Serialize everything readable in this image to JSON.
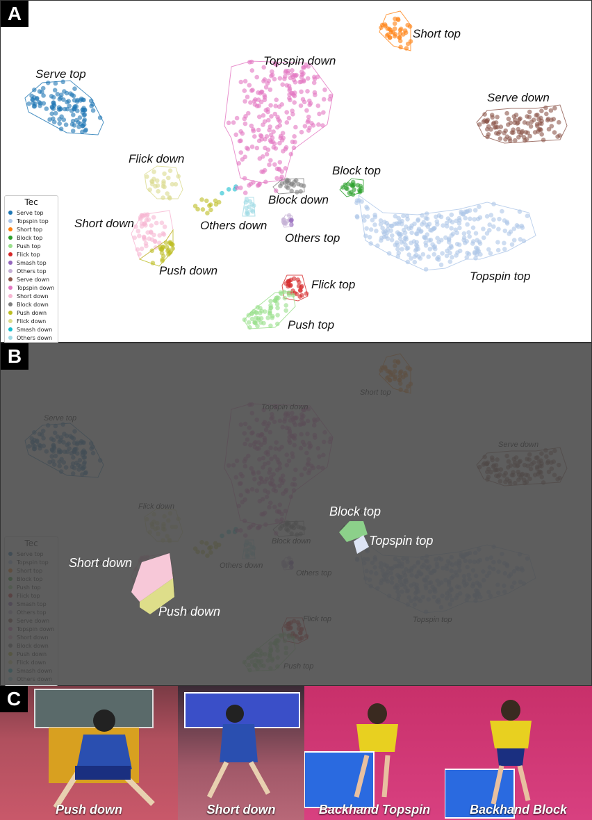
{
  "panel_letters": {
    "a": "A",
    "b": "B",
    "c": "C"
  },
  "legend": {
    "title": "Tec",
    "items": [
      {
        "label": "Serve top",
        "color": "#1f77b4"
      },
      {
        "label": "Topspin top",
        "color": "#aec7e8"
      },
      {
        "label": "Short top",
        "color": "#ff7f0e"
      },
      {
        "label": "Block top",
        "color": "#2ca02c"
      },
      {
        "label": "Push top",
        "color": "#98df8a"
      },
      {
        "label": "Flick top",
        "color": "#d62728"
      },
      {
        "label": "Smash top",
        "color": "#9467bd"
      },
      {
        "label": "Others top",
        "color": "#c5b0d5"
      },
      {
        "label": "Serve down",
        "color": "#8c564b"
      },
      {
        "label": "Topspin down",
        "color": "#e377c2"
      },
      {
        "label": "Short down",
        "color": "#f7b6d2"
      },
      {
        "label": "Block down",
        "color": "#7f7f7f"
      },
      {
        "label": "Push down",
        "color": "#bcbd22"
      },
      {
        "label": "Flick down",
        "color": "#dbdb8d"
      },
      {
        "label": "Smash down",
        "color": "#17becf"
      },
      {
        "label": "Others down",
        "color": "#9edae5"
      }
    ]
  },
  "chart_data": [
    {
      "type": "scatter",
      "title": "",
      "xlabel": "",
      "ylabel": "",
      "clusters": [
        {
          "name": "Serve top",
          "label": "Serve top",
          "color": "#1f77b4",
          "center": [
            -7.2,
            5.2
          ],
          "n": 110
        },
        {
          "name": "Short top",
          "label": "Short top",
          "color": "#ff7f0e",
          "center": [
            4.8,
            7.6
          ],
          "n": 35
        },
        {
          "name": "Topspin down",
          "label": "Topspin down",
          "color": "#e377c2",
          "center": [
            0.4,
            3.3
          ],
          "n": 220
        },
        {
          "name": "Serve down",
          "label": "Serve down",
          "color": "#8c564b",
          "center": [
            7.6,
            3.5
          ],
          "n": 100
        },
        {
          "name": "Flick down",
          "label": "Flick down",
          "color": "#dbdb8d",
          "center": [
            -4.8,
            0.8
          ],
          "n": 25
        },
        {
          "name": "Block top",
          "label": "Block top",
          "color": "#2ca02c",
          "center": [
            3.3,
            0.2
          ],
          "n": 20
        },
        {
          "name": "Block down",
          "label": "Block down",
          "color": "#7f7f7f",
          "center": [
            1.3,
            0.2
          ],
          "n": 20
        },
        {
          "name": "Short down",
          "label": "Short down",
          "color": "#f7b6d2",
          "center": [
            -4.9,
            -2.0
          ],
          "n": 45
        },
        {
          "name": "Push down",
          "label": "Push down",
          "color": "#bcbd22",
          "center": [
            -4.6,
            -2.8
          ],
          "n": 25
        },
        {
          "name": "Others down",
          "label": "Others down",
          "color": "#9edae5",
          "center": [
            -0.6,
            -0.9
          ],
          "n": 12
        },
        {
          "name": "Others top",
          "label": "Others top",
          "color": "#c5b0d5",
          "center": [
            1.2,
            -1.6
          ],
          "n": 10
        },
        {
          "name": "Topspin top",
          "label": "Topspin top",
          "color": "#aec7e8",
          "center": [
            5.9,
            -2.4
          ],
          "n": 260
        },
        {
          "name": "Flick top",
          "label": "Flick top",
          "color": "#d62728",
          "center": [
            1.5,
            -4.8
          ],
          "n": 25
        },
        {
          "name": "Push top",
          "label": "Push top",
          "color": "#98df8a",
          "center": [
            0.3,
            -6.0
          ],
          "n": 55
        },
        {
          "name": "Smash down",
          "label": "",
          "color": "#17becf",
          "center": [
            -1.2,
            0.1
          ],
          "n": 4
        },
        {
          "name": "Smash top",
          "label": "",
          "color": "#9467bd",
          "center": [
            1.1,
            -2.0
          ],
          "n": 3
        }
      ]
    },
    {
      "type": "scatter",
      "highlighted_regions": [
        "Short down",
        "Push down",
        "Block top",
        "Topspin top"
      ]
    }
  ],
  "photos": [
    {
      "caption": "Push down"
    },
    {
      "caption": "Short down"
    },
    {
      "caption": "Backhand Topspin"
    },
    {
      "caption": "Backhand Block"
    }
  ]
}
